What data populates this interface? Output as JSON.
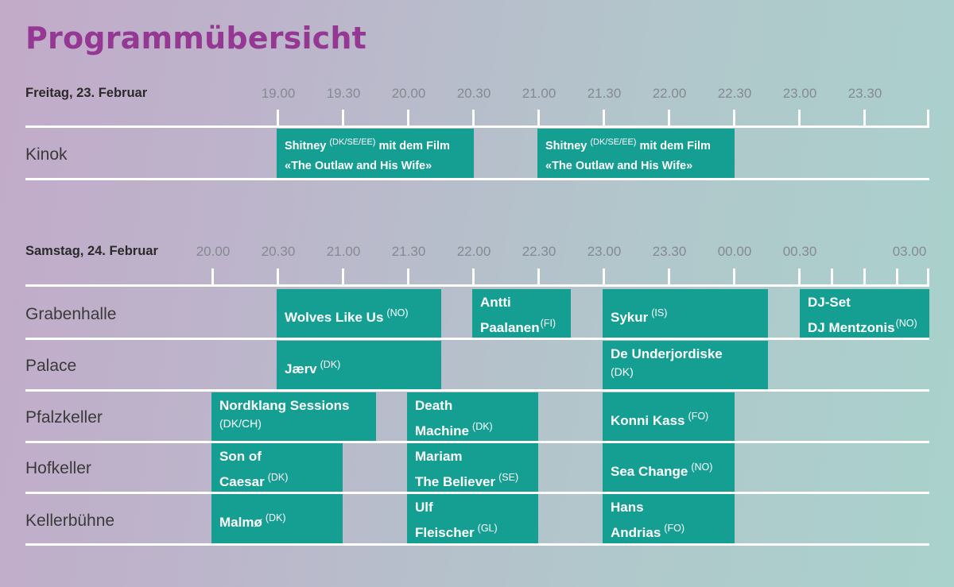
{
  "title": "Programmübersicht",
  "friday": {
    "label": "Freitag, 23. Februar",
    "times": [
      "19.00",
      "19.30",
      "20.00",
      "20.30",
      "21.00",
      "21.30",
      "22.00",
      "22.30",
      "23.00",
      "23.30"
    ],
    "venues": [
      "Kinok"
    ],
    "events": [
      {
        "line1": "Shitney",
        "origin": "(DK/SE/EE)",
        "line1b": "mit dem Film",
        "line2": "«The Outlaw and His Wife»"
      },
      {
        "line1": "Shitney",
        "origin": "(DK/SE/EE)",
        "line1b": "mit dem Film",
        "line2": "«The Outlaw and His Wife»"
      }
    ]
  },
  "saturday": {
    "label": "Samstag, 24. Februar",
    "times": [
      "20.00",
      "20.30",
      "21.00",
      "21.30",
      "22.00",
      "22.30",
      "23.00",
      "23.30",
      "00.00",
      "00.30",
      "03.00"
    ],
    "venues": [
      "Grabenhalle",
      "Palace",
      "Pfalzkeller",
      "Hofkeller",
      "Kellerbühne"
    ],
    "events": [
      {
        "line1": "Wolves Like Us",
        "origin": "(NO)"
      },
      {
        "line1": "Antti",
        "line2": "Paalanen",
        "origin": "(FI)"
      },
      {
        "line1": "Sykur",
        "origin": "(IS)"
      },
      {
        "line1": "DJ-Set",
        "line2": "DJ Mentzonis",
        "origin": "(NO)"
      },
      {
        "line1": "Jærv",
        "origin": "(DK)"
      },
      {
        "line1": "De Underjordiske",
        "origin": "(DK)"
      },
      {
        "line1": "Nordklang Sessions",
        "origin": "(DK/CH)"
      },
      {
        "line1": "Death",
        "line2": "Machine",
        "origin": "(DK)"
      },
      {
        "line1": "Konni Kass",
        "origin": "(FO)"
      },
      {
        "line1": "Son of",
        "line2": "Caesar",
        "origin": "(DK)"
      },
      {
        "line1": "Mariam",
        "line2": "The Believer",
        "origin": "(SE)"
      },
      {
        "line1": "Sea Change",
        "origin": "(NO)"
      },
      {
        "line1": "Malmø",
        "origin": "(DK)"
      },
      {
        "line1": "Ulf",
        "line2": "Fleischer",
        "origin": "(GL)"
      },
      {
        "line1": "Hans",
        "line2": "Andrias",
        "origin": "(FO)"
      }
    ]
  },
  "colors": {
    "title": "#953893",
    "event": "#159f93",
    "lines": "#ffffff"
  }
}
